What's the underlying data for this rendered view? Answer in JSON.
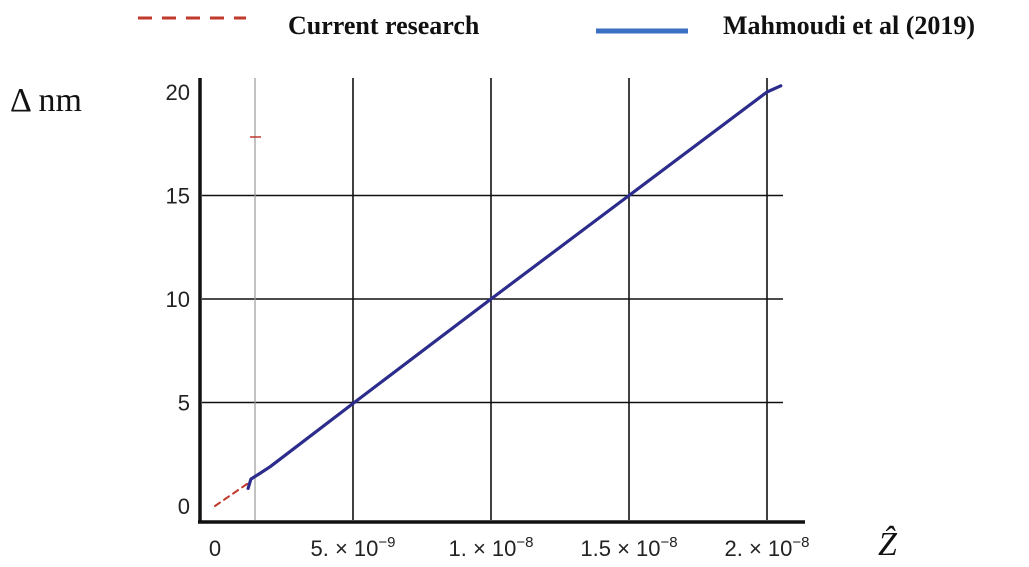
{
  "chart_data": {
    "type": "line",
    "title": "",
    "xlabel": "Ẑ",
    "ylabel": "Δ nm",
    "xlim": [
      0,
      2.1e-08
    ],
    "ylim": [
      0,
      20
    ],
    "grid": true,
    "legend_placement": "top",
    "x_ticks": [
      {
        "value": 0,
        "mantissa": "0",
        "exponent": ""
      },
      {
        "value": 5e-09,
        "mantissa": "5. × 10",
        "exponent": "−9"
      },
      {
        "value": 1e-08,
        "mantissa": "1. × 10",
        "exponent": "−8"
      },
      {
        "value": 1.5e-08,
        "mantissa": "1.5 × 10",
        "exponent": "−8"
      },
      {
        "value": 2e-08,
        "mantissa": "2. × 10",
        "exponent": "−8"
      }
    ],
    "y_ticks": [
      {
        "value": 0,
        "label": "0"
      },
      {
        "value": 5,
        "label": "5"
      },
      {
        "value": 10,
        "label": "10"
      },
      {
        "value": 15,
        "label": "15"
      },
      {
        "value": 20,
        "label": "20"
      }
    ],
    "series": [
      {
        "name": "Current research",
        "color": "#c0392b",
        "style": "dashed",
        "x": [
          0,
          1.2e-09
        ],
        "y": [
          0,
          1.1
        ]
      },
      {
        "name": "Mahmoudi et al (2019)",
        "color": "#2c2c8c",
        "legend_color": "#3a6fc4",
        "style": "solid",
        "x": [
          1.2e-09,
          1.3e-09,
          1.6e-09,
          2e-09,
          5e-09,
          1e-08,
          1.5e-08,
          2e-08,
          2.05e-08
        ],
        "y": [
          0.85,
          1.3,
          1.55,
          1.9,
          4.95,
          10,
          15,
          20,
          20.3
        ]
      }
    ]
  }
}
